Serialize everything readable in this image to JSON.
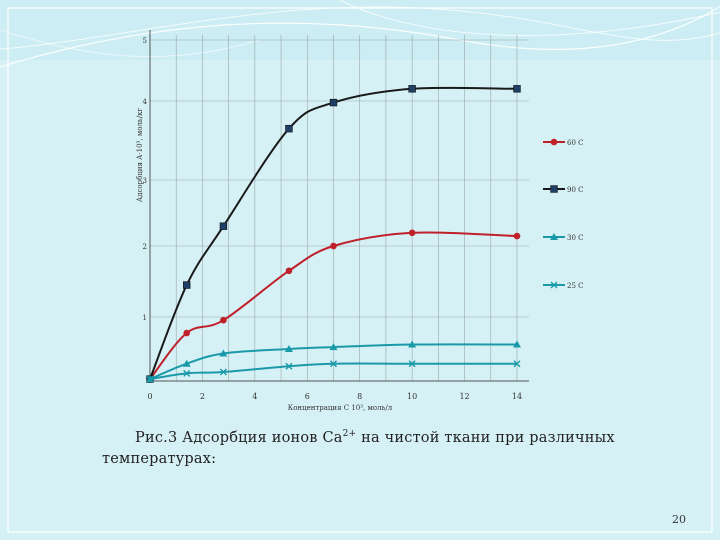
{
  "slide": {
    "caption_line1": "Рис.3 Адсорбция ионов Ca",
    "caption_sup": "2+",
    "caption_line1_rest": " на чистой ткани при различных",
    "caption_line2": "температурах:",
    "page_number": "20"
  },
  "colors": {
    "background": "#d6f1f6",
    "decor_lines": "#ffffff",
    "grid": "#9aa6a8",
    "series_60": "#c0202a",
    "series_90": "#1a1a1a",
    "series_30": "#1a9aa8",
    "series_25": "#1a9aa8"
  },
  "chart_data": {
    "type": "line",
    "xlabel": "Концентрация С 10³, моль/л",
    "ylabel": "Адсорбция А·10³, моль/кг",
    "xlim": [
      0,
      14
    ],
    "ylim": [
      0,
      5
    ],
    "x_ticks": [
      "0",
      "2",
      "4",
      "6",
      "8",
      "10",
      "12",
      "14"
    ],
    "y_ticks": [
      "1",
      "2",
      "3",
      "4",
      "5"
    ],
    "grid": true,
    "legend_position": "right",
    "series": [
      {
        "name": "60 С",
        "color": "#c0202a",
        "marker": "circle",
        "x": [
          0,
          1.4,
          2.8,
          5.3,
          7,
          10,
          14
        ],
        "y": [
          0.03,
          0.75,
          0.95,
          1.65,
          2.0,
          2.2,
          2.15
        ]
      },
      {
        "name": "90 С",
        "color": "#1a1a1a",
        "marker": "square",
        "x": [
          0,
          1.4,
          2.8,
          5.3,
          7,
          10,
          14
        ],
        "y": [
          0.03,
          1.45,
          2.3,
          3.65,
          3.98,
          4.2,
          4.2
        ]
      },
      {
        "name": "30 С",
        "color": "#1a9aa8",
        "marker": "triangle",
        "x": [
          0,
          1.4,
          2.8,
          5.3,
          7,
          10,
          14
        ],
        "y": [
          0.03,
          0.27,
          0.43,
          0.5,
          0.53,
          0.57,
          0.57
        ]
      },
      {
        "name": "25 С",
        "color": "#1a9aa8",
        "marker": "x",
        "x": [
          0,
          1.4,
          2.8,
          5.3,
          7,
          10,
          14
        ],
        "y": [
          0.03,
          0.12,
          0.14,
          0.23,
          0.27,
          0.27,
          0.27
        ]
      }
    ]
  }
}
